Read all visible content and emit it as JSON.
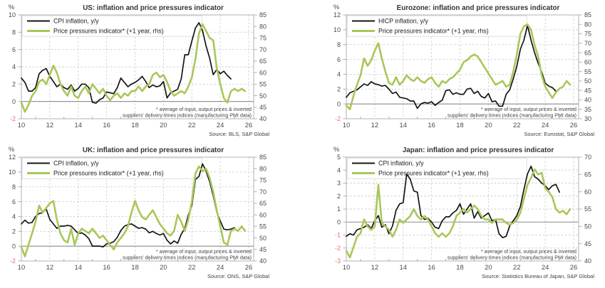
{
  "page": {
    "background": "#ffffff"
  },
  "colors": {
    "black_line": "#151515",
    "green_line": "#a9c75a",
    "negative_tick": "#f26d6d",
    "tick_text": "#4a4a4a",
    "title_text": "#333333",
    "note_text": "#3f3f3f",
    "grid": "#cdcdcd",
    "zero_line": "#8a8a8a",
    "frame": "#b0b0b0",
    "legend_box_border": "#dedede"
  },
  "footnote": [
    "* average of input, output prices & inverted",
    "suppliers' delivery times indices (manufacturing PMI data)"
  ],
  "chart_data": [
    {
      "id": "us",
      "type": "line",
      "title": "US: inflation and price pressures indicator",
      "unit": "%",
      "x_offset": 0,
      "x_range": [
        10,
        26.35
      ],
      "x_tick_labels": [
        10,
        12,
        14,
        16,
        18,
        20,
        22,
        24,
        26
      ],
      "x_gridlines": [
        12,
        14,
        16,
        18,
        20,
        22,
        24,
        26
      ],
      "x_minor_ticks": [
        11,
        13,
        15,
        17,
        19,
        21,
        23,
        25
      ],
      "left_axis": {
        "min": -2,
        "max": 10,
        "ticks": [
          10,
          8,
          6,
          4,
          2,
          0,
          -2
        ]
      },
      "right_axis": {
        "min": 40,
        "max": 85,
        "ticks": [
          85,
          80,
          75,
          70,
          65,
          60,
          55,
          50,
          45,
          40
        ]
      },
      "source": "Source: BLS, S&P Global",
      "series": [
        {
          "name": "CPI inflation, y/y",
          "axis": "left",
          "color": "black",
          "x0": 10,
          "dx": 0.25,
          "y": [
            2.7,
            2.2,
            1.2,
            1.2,
            1.6,
            3.2,
            3.6,
            3.8,
            2.9,
            2.3,
            1.7,
            2.0,
            1.6,
            1.4,
            1.9,
            1.2,
            1.5,
            2.0,
            2.0,
            1.6,
            -0.1,
            -0.2,
            0.2,
            0.4,
            1.1,
            1.0,
            0.9,
            1.6,
            2.7,
            2.2,
            1.7,
            2.0,
            2.2,
            2.5,
            2.9,
            2.3,
            1.6,
            1.9,
            1.7,
            1.8,
            2.3,
            0.4,
            1.0,
            1.2,
            1.4,
            2.6,
            5.4,
            5.4,
            7.0,
            8.5,
            9.1,
            8.2,
            6.4,
            5.0,
            3.1,
            3.7,
            3.2,
            3.5,
            3.0,
            2.6
          ]
        },
        {
          "name": "Price pressures indicator* (+1 year, rhs)",
          "axis": "right",
          "color": "green",
          "x0": 10,
          "dx": 0.25,
          "y": [
            47,
            43,
            46,
            50,
            52,
            56,
            57,
            55,
            59,
            63,
            60,
            55,
            52,
            50,
            54,
            50,
            49,
            52,
            54,
            51,
            55,
            53,
            51,
            53,
            50,
            48,
            50,
            51,
            49,
            51,
            50,
            52,
            52,
            54,
            52,
            54,
            55,
            59,
            60,
            58,
            59,
            56,
            52,
            50,
            51,
            52,
            51,
            54,
            58,
            66,
            77,
            81,
            78,
            75,
            74,
            62,
            55,
            49,
            47,
            52,
            53,
            52,
            53,
            52
          ]
        }
      ]
    },
    {
      "id": "eurozone",
      "type": "line",
      "title": "Eurozone: inflation and price pressures indicator",
      "unit": "%",
      "x_offset": 32,
      "x_range": [
        10,
        26.35
      ],
      "x_tick_labels": [
        10,
        12,
        14,
        16,
        18,
        20,
        22,
        24,
        26
      ],
      "x_gridlines": [
        12,
        14,
        16,
        18,
        20,
        22,
        24,
        26
      ],
      "x_minor_ticks": [
        11,
        13,
        15,
        17,
        19,
        21,
        23,
        25
      ],
      "left_axis": {
        "min": -2,
        "max": 12,
        "ticks": [
          12,
          10,
          8,
          6,
          4,
          2,
          0,
          -2
        ]
      },
      "right_axis": {
        "min": 30,
        "max": 85,
        "ticks": [
          85,
          80,
          75,
          70,
          65,
          60,
          55,
          50,
          45,
          40,
          35,
          30
        ]
      },
      "source": "Source: Eurostat, S&P Global",
      "series": [
        {
          "name": "HICP inflation, y/y",
          "axis": "left",
          "color": "black",
          "x0": 10,
          "dx": 0.25,
          "y": [
            0.9,
            1.5,
            1.7,
            1.9,
            2.3,
            2.7,
            2.5,
            3.0,
            2.7,
            2.6,
            2.4,
            2.5,
            2.0,
            1.4,
            1.6,
            0.9,
            0.8,
            0.7,
            0.4,
            0.4,
            -0.6,
            0.0,
            0.2,
            0.1,
            0.3,
            -0.2,
            0.2,
            0.5,
            1.8,
            1.9,
            1.3,
            1.5,
            1.3,
            1.3,
            2.0,
            2.1,
            1.4,
            1.7,
            1.0,
            0.8,
            1.4,
            0.3,
            0.4,
            -0.3,
            -0.3,
            1.3,
            1.9,
            3.4,
            5.1,
            7.4,
            8.6,
            10.6,
            8.6,
            6.9,
            5.5,
            4.3,
            2.8,
            2.4,
            2.2,
            1.7,
            2.0
          ]
        },
        {
          "name": "Price pressures indicator* (+1 year, rhs)",
          "axis": "right",
          "color": "green",
          "x0": 10,
          "dx": 0.25,
          "y": [
            37,
            35,
            42,
            48,
            53,
            62,
            58,
            61,
            66,
            70,
            62,
            55,
            49,
            48,
            52,
            48,
            50,
            53,
            51,
            50,
            52,
            50,
            49,
            51,
            52,
            49,
            47,
            50,
            49,
            51,
            52,
            54,
            56,
            60,
            61,
            63,
            64,
            63,
            60,
            57,
            54,
            51,
            48,
            49,
            50,
            47,
            48,
            55,
            64,
            75,
            79,
            80,
            77,
            69,
            63,
            53,
            47,
            44,
            41,
            44,
            46,
            47,
            50,
            48
          ]
        }
      ]
    },
    {
      "id": "uk",
      "type": "line",
      "title": "UK: inflation and price pressures indicator",
      "unit": "%",
      "x_offset": 0,
      "x_range": [
        10,
        26.35
      ],
      "x_tick_labels": [
        10,
        12,
        14,
        16,
        18,
        20,
        22,
        24,
        26
      ],
      "x_gridlines": [
        12,
        14,
        16,
        18,
        20,
        22,
        24,
        26
      ],
      "x_minor_ticks": [
        11,
        13,
        15,
        17,
        19,
        21,
        23,
        25
      ],
      "left_axis": {
        "min": -2,
        "max": 12,
        "ticks": [
          12,
          10,
          8,
          6,
          4,
          2,
          0,
          -2
        ]
      },
      "right_axis": {
        "min": 40,
        "max": 85,
        "ticks": [
          85,
          80,
          75,
          70,
          65,
          60,
          55,
          50,
          45,
          40
        ]
      },
      "source": "Source: ONS, S&P Global",
      "series": [
        {
          "name": "CPI inflation, y/y",
          "axis": "left",
          "color": "black",
          "x0": 10,
          "dx": 0.25,
          "y": [
            3.0,
            3.5,
            3.1,
            3.2,
            4.0,
            4.4,
            4.5,
            5.0,
            3.6,
            3.0,
            2.4,
            2.7,
            2.7,
            2.8,
            2.7,
            2.2,
            1.7,
            1.8,
            1.5,
            1.0,
            0.0,
            0.0,
            0.0,
            -0.1,
            0.3,
            0.4,
            0.6,
            1.2,
            2.1,
            2.7,
            2.9,
            3.0,
            2.7,
            2.4,
            2.5,
            2.3,
            1.8,
            2.0,
            1.7,
            1.5,
            1.7,
            0.8,
            0.3,
            0.7,
            0.4,
            1.6,
            2.4,
            4.2,
            5.5,
            9.0,
            9.4,
            11.1,
            10.1,
            8.7,
            6.8,
            4.6,
            3.4,
            2.3,
            2.2,
            2.3,
            2.5
          ]
        },
        {
          "name": "Price pressures indicator* (+1 year, rhs)",
          "axis": "right",
          "color": "green",
          "x0": 10,
          "dx": 0.25,
          "y": [
            46,
            42,
            47,
            52,
            57,
            64,
            61,
            63,
            65,
            66,
            58,
            52,
            49,
            48,
            54,
            47,
            52,
            54,
            53,
            52,
            54,
            52,
            50,
            51,
            49,
            47,
            45,
            48,
            50,
            52,
            55,
            61,
            66,
            62,
            59,
            58,
            60,
            62,
            59,
            56,
            54,
            52,
            51,
            53,
            60,
            57,
            53,
            58,
            66,
            78,
            81,
            79,
            80,
            76,
            70,
            62,
            55,
            48,
            47,
            53,
            54,
            53,
            55,
            53
          ]
        }
      ]
    },
    {
      "id": "japan",
      "type": "line",
      "title": "Japan: inflation and price pressures indicator",
      "unit": "%",
      "x_offset": 32,
      "x_range": [
        10,
        26.35
      ],
      "x_tick_labels": [
        10,
        12,
        14,
        16,
        18,
        20,
        22,
        24,
        26
      ],
      "x_gridlines": [
        12,
        14,
        16,
        18,
        20,
        22,
        24,
        26
      ],
      "x_minor_ticks": [
        11,
        13,
        15,
        17,
        19,
        21,
        23,
        25
      ],
      "left_axis": {
        "min": -3,
        "max": 5,
        "ticks": [
          5,
          4,
          3,
          2,
          1,
          0,
          -1,
          -2,
          -3
        ]
      },
      "right_axis": {
        "min": 40,
        "max": 70,
        "ticks": [
          70,
          65,
          60,
          55,
          50,
          45,
          40
        ]
      },
      "source": "Source: Statistics Bureau of Japan, S&P Global",
      "series": [
        {
          "name": "CPI inflation, y/y",
          "axis": "left",
          "color": "black",
          "x0": 10,
          "dx": 0.25,
          "y": [
            -1.1,
            -0.9,
            -1.0,
            -0.6,
            -0.5,
            -0.4,
            -0.2,
            -0.5,
            0.1,
            0.5,
            -0.4,
            -0.2,
            -0.9,
            -0.3,
            0.9,
            1.4,
            1.5,
            3.7,
            3.3,
            2.4,
            2.3,
            0.5,
            0.2,
            0.3,
            0.0,
            -0.4,
            -0.5,
            0.1,
            0.4,
            0.4,
            0.7,
            0.9,
            1.4,
            0.6,
            1.0,
            1.4,
            0.3,
            0.8,
            0.3,
            0.5,
            0.7,
            0.1,
            0.2,
            -0.9,
            -1.2,
            -1.1,
            -0.3,
            0.1,
            0.5,
            1.2,
            2.5,
            3.7,
            4.3,
            3.5,
            3.3,
            3.0,
            2.8,
            2.5,
            2.8,
            2.9,
            2.3
          ]
        },
        {
          "name": "Price pressures indicator* (+1 year, rhs)",
          "axis": "right",
          "color": "green",
          "x0": 10,
          "dx": 0.25,
          "y": [
            43,
            41,
            44,
            47,
            48,
            52,
            50,
            49,
            50,
            62,
            51,
            50,
            49,
            47,
            49,
            52,
            51,
            52,
            53,
            55,
            53,
            52,
            53,
            52,
            50,
            48,
            47,
            48,
            47,
            48,
            50,
            53,
            54,
            55,
            54,
            55,
            56,
            55,
            53,
            52,
            52,
            51,
            52,
            52,
            52,
            51,
            50.5,
            51,
            52,
            54,
            58,
            62,
            64,
            66.5,
            65,
            65.5,
            61,
            60,
            58.5,
            55,
            54,
            54.5,
            53.5,
            55
          ]
        }
      ]
    }
  ]
}
